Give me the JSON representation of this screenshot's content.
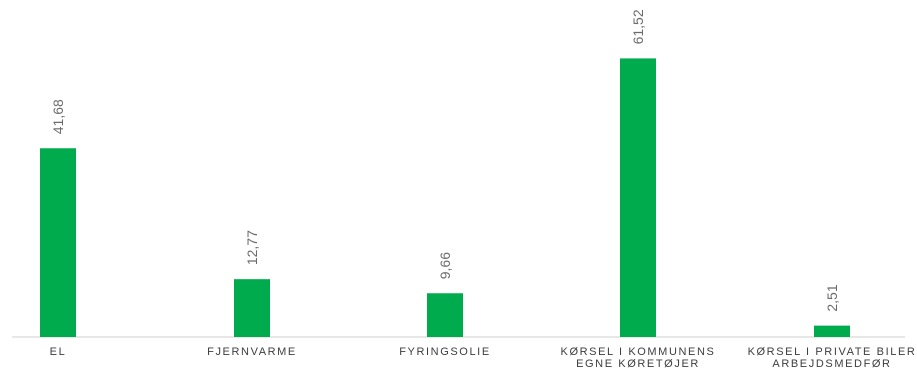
{
  "chart_data": {
    "type": "bar",
    "categories": [
      [
        "EL"
      ],
      [
        "FJERNVARME"
      ],
      [
        "FYRINGSOLIE"
      ],
      [
        "KØRSEL I KOMMUNENS",
        "EGNE KØRETØJER"
      ],
      [
        "KØRSEL I PRIVATE BILER",
        "ARBEJDSMEDFØR"
      ]
    ],
    "values": [
      41.68,
      12.77,
      9.66,
      61.52,
      2.51
    ],
    "value_labels": [
      "41,68",
      "12,77",
      "9,66",
      "61,52",
      "2,51"
    ],
    "ylim": [
      0,
      70
    ],
    "bar_color": "#00ab4e",
    "grid": false,
    "legend": "none"
  }
}
